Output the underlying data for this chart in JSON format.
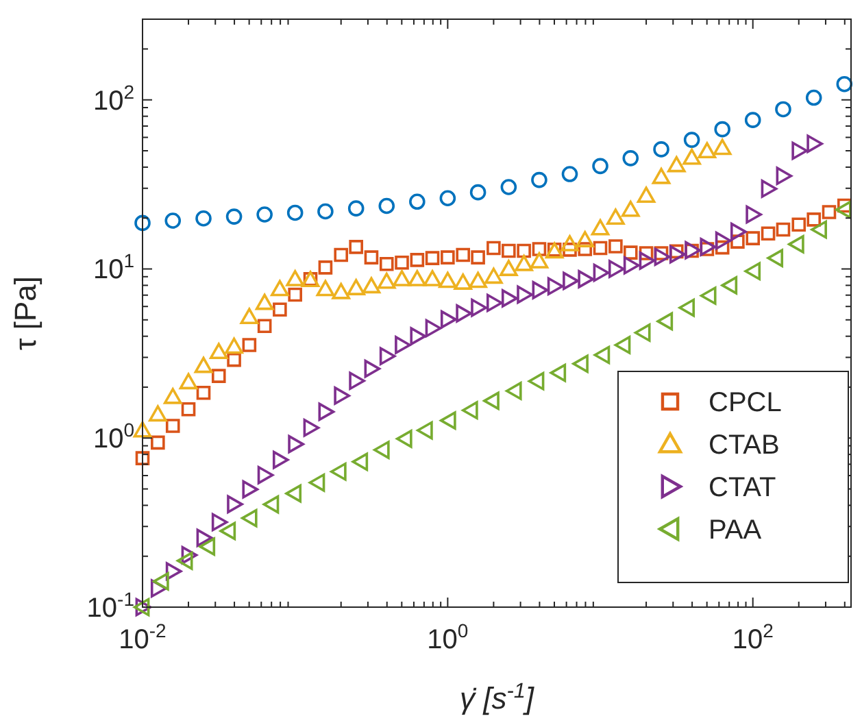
{
  "chart_data": {
    "type": "scatter",
    "xlabel": "γ̇ [s$^{-1}$]",
    "ylabel": "τ [Pa]",
    "log": "xy",
    "grid": false,
    "legend": "bottom right",
    "xlim": [
      0.01,
      440
    ],
    "ylim": [
      0.1,
      300
    ],
    "xticks": [
      {
        "value": 0.01,
        "label": "10$^{-2}$"
      },
      {
        "value": 0.02,
        "label": null
      },
      {
        "value": 0.03,
        "label": null
      },
      {
        "value": 0.04,
        "label": null
      },
      {
        "value": 0.05,
        "label": null
      },
      {
        "value": 0.06,
        "label": null
      },
      {
        "value": 0.07,
        "label": null
      },
      {
        "value": 0.08,
        "label": null
      },
      {
        "value": 0.09,
        "label": null
      },
      {
        "value": 0.2,
        "label": null
      },
      {
        "value": 0.3,
        "label": null
      },
      {
        "value": 0.4,
        "label": null
      },
      {
        "value": 0.5,
        "label": null
      },
      {
        "value": 0.6,
        "label": null
      },
      {
        "value": 0.7,
        "label": null
      },
      {
        "value": 0.8,
        "label": null
      },
      {
        "value": 0.9,
        "label": null
      },
      {
        "value": 1,
        "label": "10$^{0}$"
      },
      {
        "value": 2,
        "label": null
      },
      {
        "value": 3,
        "label": null
      },
      {
        "value": 4,
        "label": null
      },
      {
        "value": 5,
        "label": null
      },
      {
        "value": 6,
        "label": null
      },
      {
        "value": 7,
        "label": null
      },
      {
        "value": 8,
        "label": null
      },
      {
        "value": 9,
        "label": null
      },
      {
        "value": 20,
        "label": null
      },
      {
        "value": 30,
        "label": null
      },
      {
        "value": 40,
        "label": null
      },
      {
        "value": 50,
        "label": null
      },
      {
        "value": 60,
        "label": null
      },
      {
        "value": 70,
        "label": null
      },
      {
        "value": 80,
        "label": null
      },
      {
        "value": 90,
        "label": null
      },
      {
        "value": 100,
        "label": "10$^{2}$"
      },
      {
        "value": 200,
        "label": null
      },
      {
        "value": 300,
        "label": null
      },
      {
        "value": 400,
        "label": null
      }
    ],
    "yticks": [
      {
        "value": 0.1,
        "label": "10$^{-1}$"
      },
      {
        "value": 0.2,
        "label": null
      },
      {
        "value": 0.3,
        "label": null
      },
      {
        "value": 0.4,
        "label": null
      },
      {
        "value": 0.5,
        "label": null
      },
      {
        "value": 0.6,
        "label": null
      },
      {
        "value": 0.7,
        "label": null
      },
      {
        "value": 0.8,
        "label": null
      },
      {
        "value": 0.9,
        "label": null
      },
      {
        "value": 1,
        "label": "10$^{0}$"
      },
      {
        "value": 2,
        "label": null
      },
      {
        "value": 3,
        "label": null
      },
      {
        "value": 4,
        "label": null
      },
      {
        "value": 5,
        "label": null
      },
      {
        "value": 6,
        "label": null
      },
      {
        "value": 7,
        "label": null
      },
      {
        "value": 8,
        "label": null
      },
      {
        "value": 9,
        "label": null
      },
      {
        "value": 10,
        "label": "10$^{1}$"
      },
      {
        "value": 20,
        "label": null
      },
      {
        "value": 30,
        "label": null
      },
      {
        "value": 40,
        "label": null
      },
      {
        "value": 50,
        "label": null
      },
      {
        "value": 60,
        "label": null
      },
      {
        "value": 70,
        "label": null
      },
      {
        "value": 80,
        "label": null
      },
      {
        "value": 90,
        "label": null
      },
      {
        "value": 100,
        "label": "10$^{2}$"
      },
      {
        "value": 200,
        "label": null
      },
      {
        "value": 300,
        "label": null
      }
    ],
    "series": [
      {
        "color": "#0072bd",
        "marker": "circle",
        "x": [
          0.01,
          0.0158,
          0.0251,
          0.0398,
          0.0631,
          0.1,
          0.158,
          0.251,
          0.398,
          0.631,
          1,
          1.58,
          2.51,
          3.98,
          6.31,
          10,
          15.8,
          25.1,
          39.8,
          63.1,
          100,
          158,
          251,
          398
        ],
        "values": [
          18.7,
          19.3,
          19.9,
          20.4,
          21,
          21.5,
          21.9,
          22.8,
          23.6,
          25,
          26.2,
          28.4,
          30.5,
          33.6,
          36.4,
          40.6,
          45.2,
          51,
          58,
          67,
          76,
          88,
          103,
          124
        ]
      },
      {
        "name": "CPCL",
        "color": "#d95319",
        "marker": "square",
        "x": [
          0.01,
          0.0126,
          0.0158,
          0.02,
          0.0251,
          0.0316,
          0.0398,
          0.0501,
          0.0631,
          0.0794,
          0.1,
          0.126,
          0.158,
          0.2,
          0.251,
          0.316,
          0.398,
          0.501,
          0.631,
          0.794,
          1,
          1.26,
          1.58,
          2,
          2.51,
          3.16,
          3.98,
          5.01,
          6.31,
          7.94,
          10,
          12.6,
          15.8,
          20,
          25.1,
          31.6,
          39.8,
          50.1,
          63.1,
          79.4,
          100,
          126,
          158,
          200,
          251,
          316,
          398
        ],
        "values": [
          0.76,
          0.94,
          1.18,
          1.48,
          1.85,
          2.33,
          2.9,
          3.55,
          4.6,
          5.75,
          7.05,
          8.7,
          10.2,
          12.1,
          13.5,
          11.7,
          10.7,
          10.9,
          11.3,
          11.6,
          11.7,
          12.1,
          11.7,
          13.3,
          12.8,
          12.8,
          13.1,
          13,
          13,
          13.1,
          13.3,
          13.6,
          12.5,
          12.4,
          12.4,
          12.7,
          12.8,
          13.1,
          13.4,
          14.5,
          15.2,
          16.2,
          17.1,
          18.3,
          19.6,
          21.7,
          23.7
        ]
      },
      {
        "name": "CTAB",
        "color": "#edb120",
        "marker": "triangle",
        "x": [
          0.01,
          0.0126,
          0.0158,
          0.02,
          0.0251,
          0.0316,
          0.0398,
          0.0501,
          0.0631,
          0.0794,
          0.1,
          0.126,
          0.158,
          0.2,
          0.251,
          0.316,
          0.398,
          0.501,
          0.631,
          0.794,
          1,
          1.26,
          1.58,
          2,
          2.51,
          3.16,
          3.98,
          5.01,
          6.31,
          7.94,
          10,
          12.6,
          15.8,
          20,
          25.1,
          31.6,
          39.8,
          50.1,
          63.1
        ],
        "values": [
          1.11,
          1.38,
          1.75,
          2.14,
          2.67,
          3.23,
          3.47,
          5.2,
          6.3,
          7.6,
          8.7,
          8.6,
          7.6,
          7.3,
          7.7,
          7.9,
          8.4,
          8.7,
          8.7,
          8.7,
          8.5,
          8.3,
          8.5,
          9,
          10,
          10.7,
          11.1,
          12.7,
          14,
          14.8,
          17.4,
          20.1,
          22.4,
          27.1,
          35,
          41.1,
          45.5,
          49.7,
          52
        ]
      },
      {
        "name": "CTAT",
        "color": "#7e2f8e",
        "marker": "triangle-right",
        "x": [
          0.01,
          0.0126,
          0.0158,
          0.02,
          0.0251,
          0.0316,
          0.0398,
          0.0501,
          0.0631,
          0.0794,
          0.1,
          0.126,
          0.158,
          0.2,
          0.251,
          0.316,
          0.398,
          0.501,
          0.631,
          0.794,
          1,
          1.26,
          1.58,
          2,
          2.51,
          3.16,
          3.98,
          5.01,
          6.31,
          7.94,
          10,
          12.6,
          15.8,
          20,
          25.1,
          31.6,
          39.8,
          50.1,
          63.1,
          79.4,
          100,
          126,
          158,
          200,
          251
        ],
        "values": [
          0.1,
          0.129,
          0.163,
          0.203,
          0.257,
          0.318,
          0.406,
          0.497,
          0.604,
          0.743,
          0.92,
          1.15,
          1.43,
          1.78,
          2.18,
          2.57,
          3.05,
          3.55,
          4,
          4.46,
          5.03,
          5.46,
          5.9,
          6.3,
          6.7,
          7.05,
          7.5,
          7.9,
          8.5,
          8.7,
          9.5,
          10,
          10.5,
          11.2,
          11.8,
          12.2,
          12.9,
          13.5,
          14.7,
          16.6,
          21,
          29.8,
          35.5,
          50,
          55
        ]
      },
      {
        "name": "PAA",
        "color": "#77ac30",
        "marker": "triangle-left",
        "x": [
          0.01,
          0.0134,
          0.0192,
          0.0269,
          0.0367,
          0.0508,
          0.0705,
          0.0989,
          0.141,
          0.195,
          0.27,
          0.374,
          0.526,
          0.718,
          1.02,
          1.42,
          1.96,
          2.75,
          3.86,
          5.36,
          7.52,
          10.4,
          14.2,
          19.2,
          26.9,
          37.4,
          51.8,
          71.1,
          101,
          142,
          195,
          275,
          398
        ],
        "values": [
          0.1,
          0.142,
          0.188,
          0.228,
          0.282,
          0.336,
          0.405,
          0.47,
          0.545,
          0.633,
          0.724,
          0.851,
          0.99,
          1.11,
          1.27,
          1.46,
          1.66,
          1.9,
          2.17,
          2.43,
          2.75,
          3.1,
          3.55,
          4.2,
          4.9,
          5.9,
          6.95,
          8,
          9.7,
          11.6,
          14,
          17.1,
          22.4
        ]
      }
    ]
  }
}
